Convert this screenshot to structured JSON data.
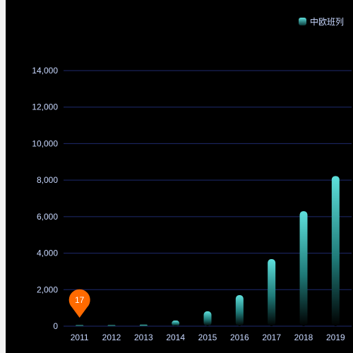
{
  "chart_data": {
    "type": "bar",
    "categories": [
      "2011",
      "2012",
      "2013",
      "2014",
      "2015",
      "2016",
      "2017",
      "2018",
      "2019"
    ],
    "series": [
      {
        "name": "中欧班列",
        "values": [
          17,
          42,
          80,
          308,
          815,
          1702,
          3673,
          6300,
          8225
        ]
      }
    ],
    "ylim": [
      0,
      14000
    ],
    "yticks": [
      0,
      2000,
      4000,
      6000,
      8000,
      10000,
      12000,
      14000
    ],
    "ytick_labels": [
      "0",
      "2,000",
      "4,000",
      "6,000",
      "8,000",
      "10,000",
      "12,000",
      "14,000"
    ],
    "grid": true,
    "legend": "top-right",
    "marker": {
      "category": "2011",
      "label": "17",
      "kind": "min-pin"
    },
    "colors": {
      "background": "#000000",
      "grid": "#1e2a6e",
      "axis_text": "#c8d8ff",
      "bar_top": "#5ee0dc",
      "bar_bottom": "#000000",
      "marker": "#ff6a00"
    }
  }
}
